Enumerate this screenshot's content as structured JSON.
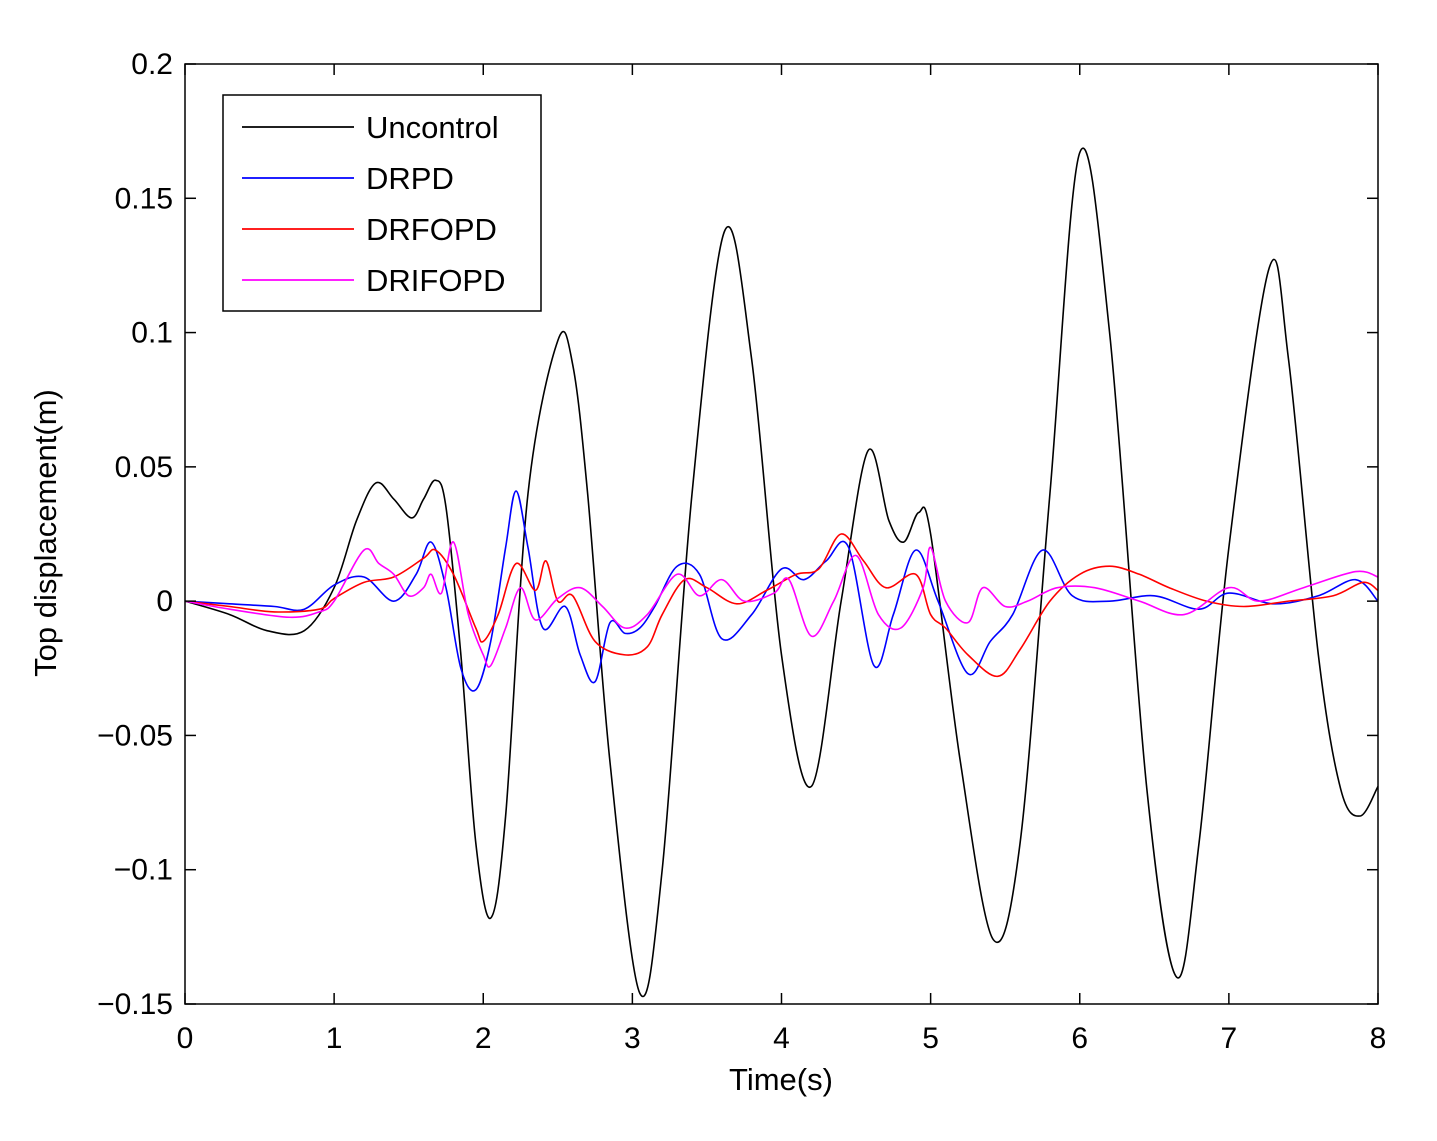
{
  "chart_data": {
    "type": "line",
    "xlabel": "Time(s)",
    "ylabel": "Top displacement(m)",
    "xlim": [
      0,
      8
    ],
    "ylim": [
      -0.15,
      0.2
    ],
    "xticks": [
      "0",
      "1",
      "2",
      "3",
      "4",
      "5",
      "6",
      "7",
      "8"
    ],
    "yticks": [
      "0.2",
      "0.15",
      "0.1",
      "0.05",
      "0",
      "−0.05",
      "−0.1",
      "−0.15"
    ],
    "grid": false,
    "legend_position": "top-left",
    "series": [
      {
        "name": "Uncontrol",
        "color": "#000000",
        "x": [
          0,
          0.3,
          0.55,
          0.8,
          1.0,
          1.15,
          1.28,
          1.4,
          1.52,
          1.6,
          1.68,
          1.75,
          1.85,
          1.95,
          2.05,
          2.15,
          2.3,
          2.5,
          2.6,
          2.7,
          2.85,
          3.05,
          3.2,
          3.4,
          3.62,
          3.8,
          4.0,
          4.2,
          4.4,
          4.58,
          4.72,
          4.82,
          4.92,
          5.0,
          5.2,
          5.42,
          5.6,
          5.8,
          6.0,
          6.2,
          6.45,
          6.65,
          6.8,
          7.0,
          7.27,
          7.4,
          7.6,
          7.75,
          7.88,
          8.0
        ],
        "y": [
          0,
          -0.005,
          -0.011,
          -0.011,
          0.005,
          0.03,
          0.044,
          0.038,
          0.031,
          0.038,
          0.045,
          0.035,
          -0.02,
          -0.09,
          -0.118,
          -0.08,
          0.04,
          0.097,
          0.088,
          0.04,
          -0.06,
          -0.146,
          -0.1,
          0.04,
          0.138,
          0.09,
          -0.02,
          -0.069,
          0.0,
          0.056,
          0.03,
          0.022,
          0.033,
          0.025,
          -0.06,
          -0.126,
          -0.09,
          0.04,
          0.167,
          0.1,
          -0.07,
          -0.14,
          -0.09,
          0.02,
          0.124,
          0.09,
          -0.02,
          -0.07,
          -0.08,
          -0.069
        ]
      },
      {
        "name": "DRPD",
        "color": "#0000ff",
        "x": [
          0,
          0.3,
          0.6,
          0.8,
          1.0,
          1.2,
          1.4,
          1.55,
          1.65,
          1.75,
          1.85,
          1.95,
          2.05,
          2.15,
          2.22,
          2.3,
          2.4,
          2.55,
          2.65,
          2.75,
          2.85,
          2.95,
          3.05,
          3.15,
          3.3,
          3.45,
          3.6,
          3.8,
          4.0,
          4.15,
          4.3,
          4.45,
          4.62,
          4.75,
          4.9,
          5.05,
          5.25,
          5.4,
          5.55,
          5.75,
          5.95,
          6.2,
          6.5,
          6.8,
          7.0,
          7.3,
          7.6,
          7.85,
          8.0
        ],
        "y": [
          0,
          -0.001,
          -0.002,
          -0.003,
          0.006,
          0.009,
          0.0,
          0.01,
          0.022,
          0.005,
          -0.025,
          -0.033,
          -0.015,
          0.02,
          0.041,
          0.02,
          -0.01,
          -0.002,
          -0.02,
          -0.03,
          -0.008,
          -0.012,
          -0.01,
          -0.002,
          0.013,
          0.01,
          -0.014,
          -0.005,
          0.012,
          0.008,
          0.015,
          0.02,
          -0.024,
          -0.005,
          0.019,
          0.0,
          -0.027,
          -0.015,
          -0.005,
          0.019,
          0.002,
          0.0,
          0.002,
          -0.003,
          0.003,
          -0.001,
          0.002,
          0.008,
          0.0
        ]
      },
      {
        "name": "DRFOPD",
        "color": "#ff0000",
        "x": [
          0,
          0.3,
          0.6,
          0.9,
          1.0,
          1.2,
          1.4,
          1.6,
          1.68,
          1.8,
          1.95,
          2.0,
          2.1,
          2.22,
          2.35,
          2.42,
          2.5,
          2.6,
          2.75,
          2.95,
          3.1,
          3.2,
          3.35,
          3.5,
          3.7,
          3.9,
          4.1,
          4.25,
          4.4,
          4.55,
          4.7,
          4.9,
          5.0,
          5.1,
          5.25,
          5.45,
          5.6,
          5.8,
          6.0,
          6.2,
          6.4,
          6.6,
          6.85,
          7.1,
          7.4,
          7.7,
          7.9,
          8.0
        ],
        "y": [
          0,
          -0.002,
          -0.004,
          -0.003,
          0.001,
          0.007,
          0.009,
          0.016,
          0.019,
          0.01,
          -0.01,
          -0.015,
          -0.005,
          0.014,
          0.004,
          0.015,
          0.0,
          0.002,
          -0.015,
          -0.02,
          -0.017,
          -0.005,
          0.008,
          0.005,
          -0.001,
          0.004,
          0.01,
          0.012,
          0.025,
          0.015,
          0.005,
          0.01,
          -0.005,
          -0.01,
          -0.02,
          -0.028,
          -0.018,
          0.0,
          0.01,
          0.013,
          0.01,
          0.005,
          0.0,
          -0.002,
          0.0,
          0.002,
          0.007,
          0.004
        ]
      },
      {
        "name": "DRIFOPD",
        "color": "#ff00ff",
        "x": [
          0,
          0.3,
          0.7,
          0.9,
          1.0,
          1.2,
          1.3,
          1.4,
          1.5,
          1.6,
          1.65,
          1.72,
          1.8,
          1.9,
          2.0,
          2.05,
          2.15,
          2.25,
          2.35,
          2.5,
          2.65,
          2.8,
          2.95,
          3.1,
          3.3,
          3.45,
          3.6,
          3.75,
          3.95,
          4.05,
          4.2,
          4.35,
          4.5,
          4.65,
          4.8,
          4.95,
          5.0,
          5.1,
          5.25,
          5.35,
          5.5,
          5.65,
          5.85,
          6.1,
          6.4,
          6.7,
          7.0,
          7.2,
          7.5,
          7.85,
          8.0
        ],
        "y": [
          0,
          -0.003,
          -0.006,
          -0.004,
          0.0,
          0.019,
          0.014,
          0.01,
          0.002,
          0.005,
          0.01,
          0.003,
          0.022,
          -0.005,
          -0.02,
          -0.024,
          -0.01,
          0.005,
          -0.007,
          0.001,
          0.005,
          -0.002,
          -0.01,
          -0.005,
          0.01,
          0.002,
          0.008,
          0.0,
          0.003,
          0.008,
          -0.013,
          0.0,
          0.017,
          -0.005,
          -0.01,
          0.005,
          0.02,
          0.0,
          -0.008,
          0.005,
          -0.002,
          0.0,
          0.005,
          0.005,
          0.0,
          -0.005,
          0.005,
          0.0,
          0.005,
          0.011,
          0.009
        ]
      }
    ]
  }
}
